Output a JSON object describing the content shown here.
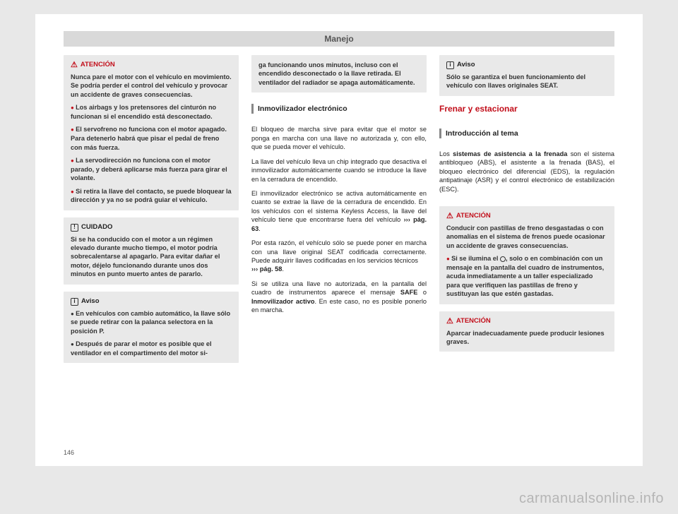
{
  "header": "Manejo",
  "page_number": "146",
  "watermark": "carmanualsonline.info",
  "col1": {
    "atencion": {
      "title": "ATENCIÓN",
      "p1": "Nunca pare el motor con el vehículo en movimiento. Se podría perder el control del vehículo y provocar un accidente de graves consecuencias.",
      "b1": "Los airbags y los pretensores del cinturón no funcionan si el encendido está desconectado.",
      "b2": "El servofreno no funciona con el motor apagado. Para detenerlo habrá que pisar el pedal de freno con más fuerza.",
      "b3": "La servodirección no funciona con el motor parado, y deberá aplicarse más fuerza para girar el volante.",
      "b4": "Si retira la llave del contacto, se puede bloquear la dirección y ya no se podrá guiar el vehículo."
    },
    "cuidado": {
      "title": "CUIDADO",
      "p1": "Si se ha conducido con el motor a un régimen elevado durante mucho tiempo, el motor podría sobrecalentarse al apagarlo. Para evitar dañar el motor, déjelo funcionando durante unos dos minutos en punto muerto antes de pararlo."
    },
    "aviso": {
      "title": "Aviso",
      "b1": "En vehículos con cambio automático, la llave sólo se puede retirar con la palanca selectora en la posición P.",
      "b2": "Después de parar el motor es posible que el ventilador en el compartimento del motor si-"
    }
  },
  "col2": {
    "cont": {
      "p1": "ga funcionando unos minutos, incluso con el encendido desconectado o la llave retirada. El ventilador del radiador se apaga automáticamente."
    },
    "subhead": "Inmovilizador electrónico",
    "body": {
      "p1": "El bloqueo de marcha sirve para evitar que el motor se ponga en marcha con una llave no autorizada y, con ello, que se pueda mover el vehículo.",
      "p2": "La llave del vehículo lleva un chip integrado que desactiva el inmovilizador automáticamente cuando se introduce la llave en la cerradura de encendido.",
      "p3a": "El inmovilizador electrónico se activa automáticamente en cuanto se extrae la llave de la cerradura de encendido. En los vehículos con el sistema Keyless Access, la llave del vehículo tiene que encontrarse fuera del vehículo ",
      "p3link": "››› pág. 63",
      "p3b": ".",
      "p4a": "Por esta razón, el vehículo sólo se puede poner en marcha con una llave original SEAT codificada correctamente. Puede adquirir llaves codificadas en los servicios técnicos ",
      "p4link": "››› pág. 58",
      "p4b": ".",
      "p5a": "Si se utiliza una llave no autorizada, en la pantalla del cuadro de instrumentos aparece el mensaje ",
      "p5safe": "SAFE",
      "p5mid": " o ",
      "p5inmov": "Inmovilizador activo",
      "p5b": ". En este caso, no es posible ponerlo en marcha."
    }
  },
  "col3": {
    "aviso": {
      "title": "Aviso",
      "p1": "Sólo se garantiza el buen funcionamiento del vehículo con llaves originales SEAT."
    },
    "section": "Frenar y estacionar",
    "subhead": "Introducción al tema",
    "body": {
      "p1a": "Los ",
      "p1bold": "sistemas de asistencia a la frenada",
      "p1b": " son el sistema antibloqueo (ABS), el asistente a la frenada (BAS), el bloqueo electrónico del diferencial (EDS), la regulación antipatinaje (ASR) y el control electrónico de estabilización (ESC)."
    },
    "atencion1": {
      "title": "ATENCIÓN",
      "p1": "Conducir con pastillas de freno desgastadas o con anomalías en el sistema de frenos puede ocasionar un accidente de graves consecuencias.",
      "b1a": "Si se ilumina el ",
      "b1b": ", solo o en combinación con un mensaje en la pantalla del cuadro de instrumentos, acuda inmediatamente a un taller especializado para que verifiquen las pastillas de freno y sustituyan las que estén gastadas."
    },
    "atencion2": {
      "title": "ATENCIÓN",
      "p1": "Aparcar inadecuadamente puede producir lesiones graves."
    }
  }
}
